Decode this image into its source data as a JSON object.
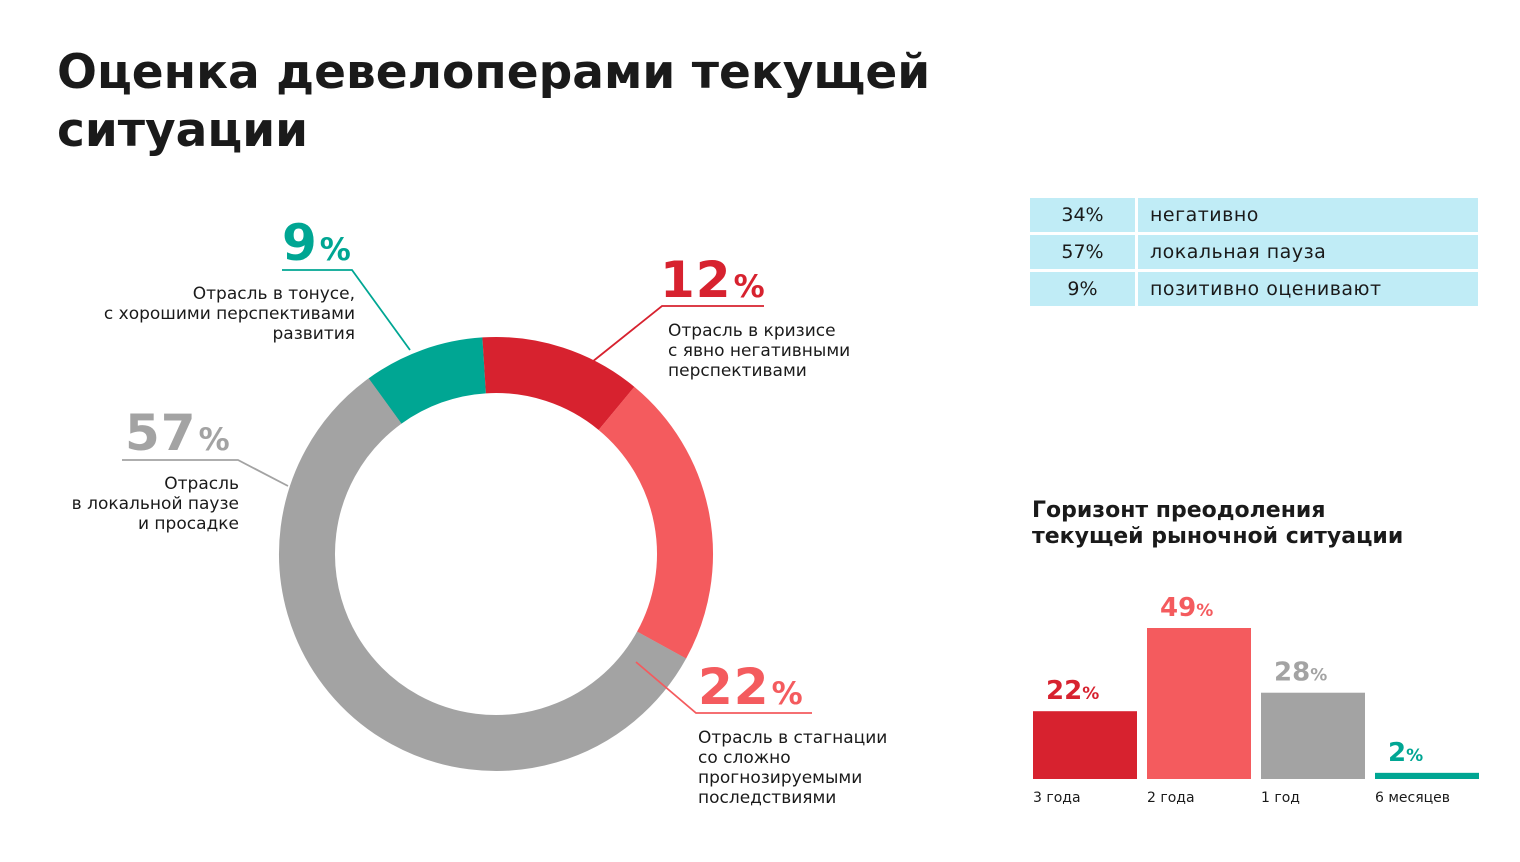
{
  "title_lines": [
    "Оценка девелоперами текущей",
    "ситуации"
  ],
  "donut": {
    "labels": {
      "positive": {
        "num": "9",
        "pct": "%",
        "desc": [
          "Отрасль в тонусе,",
          "с хорошими перспективами",
          "развития"
        ]
      },
      "crisis": {
        "num": "12",
        "pct": "%",
        "desc": [
          "Отрасль в кризисе",
          "с явно негативными",
          "перспективами"
        ]
      },
      "pause": {
        "num": "57",
        "pct": "%",
        "desc": [
          "Отрасль",
          "в локальной паузе",
          "и просадке"
        ]
      },
      "stagnation": {
        "num": "22",
        "pct": "%",
        "desc": [
          "Отрасль в стагнации",
          "со сложно",
          "прогнозируемыми",
          "последствиями"
        ]
      }
    }
  },
  "summary": [
    {
      "pct": "34%",
      "text": "негативно"
    },
    {
      "pct": "57%",
      "text": "локальная пауза"
    },
    {
      "pct": "9%",
      "text": "позитивно оценивают"
    }
  ],
  "bar_title_lines": [
    "Горизонт преодоления",
    "текущей рыночной ситуации"
  ],
  "chart_data": [
    {
      "type": "pie",
      "categories": [
        "Отрасль в тонусе, с хорошими перспективами развития",
        "Отрасль в кризисе с явно негативными перспективами",
        "Отрасль в стагнации со сложно прогнозируемыми последствиями",
        "Отрасль в локальной паузе и просадке"
      ],
      "values": [
        9,
        12,
        22,
        57
      ],
      "colors": [
        "#00a693",
        "#d7222f",
        "#f45b5e",
        "#a3a3a3"
      ]
    },
    {
      "type": "bar",
      "title": "Горизонт преодоления текущей рыночной ситуации",
      "categories": [
        "3 года",
        "2 года",
        "1 год",
        "6 месяцев"
      ],
      "values": [
        22,
        49,
        28,
        2
      ],
      "value_labels": [
        "22",
        "49",
        "28",
        "2"
      ],
      "unit": "%",
      "colors": [
        "#d7222f",
        "#f45b5e",
        "#a3a3a3",
        "#00a693"
      ],
      "ylim": [
        0,
        49
      ]
    }
  ],
  "colors": {
    "red": "#d7222f",
    "coral": "#f45b5e",
    "gray": "#a3a3a3",
    "teal": "#00a693",
    "table_bg": "#c0ecf6"
  }
}
